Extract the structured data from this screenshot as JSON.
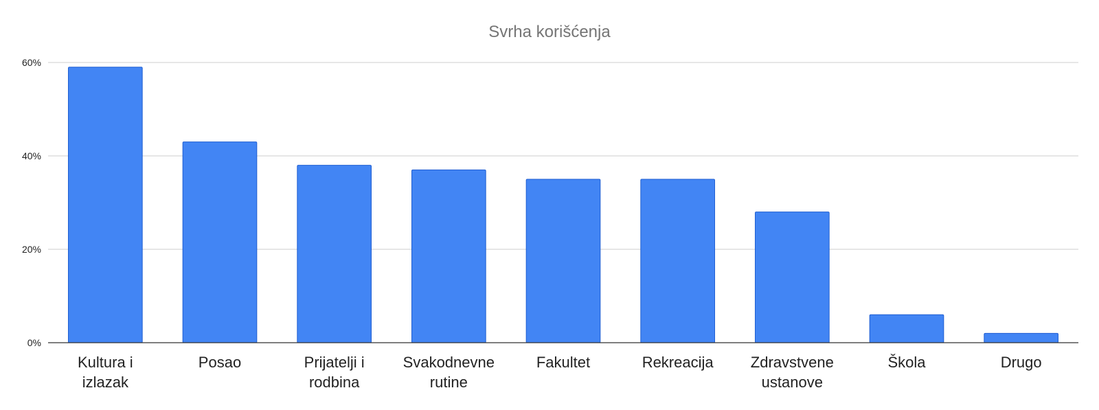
{
  "chart_data": {
    "type": "bar",
    "title": "Svrha korišćenja",
    "xlabel": "",
    "ylabel": "",
    "categories": [
      "Kultura i izlazak",
      "Posao",
      "Prijatelji i rodbina",
      "Svakodnevne rutine",
      "Fakultet",
      "Rekreacija",
      "Zdravstvene ustanove",
      "Škola",
      "Drugo"
    ],
    "category_lines": [
      [
        "Kultura i",
        "izlazak"
      ],
      [
        "Posao"
      ],
      [
        "Prijatelji i",
        "rodbina"
      ],
      [
        "Svakodnevne",
        "rutine"
      ],
      [
        "Fakultet"
      ],
      [
        "Rekreacija"
      ],
      [
        "Zdravstvene",
        "ustanove"
      ],
      [
        "Škola"
      ],
      [
        "Drugo"
      ]
    ],
    "values": [
      59,
      43,
      38,
      37,
      35,
      35,
      28,
      6,
      2
    ],
    "ylim": [
      0,
      60
    ],
    "yticks": [
      0,
      20,
      40,
      60
    ],
    "ytick_labels": [
      "0%",
      "20%",
      "40%",
      "60%"
    ],
    "grid": true,
    "legend": "none",
    "colors": {
      "bar": "#4285f4",
      "bar_outline": "#1f5ed1",
      "grid": "#cccccc",
      "title": "#757575",
      "text": "#222222"
    }
  }
}
